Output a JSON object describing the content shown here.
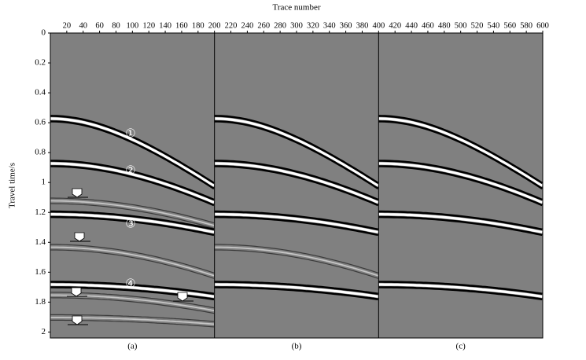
{
  "chart_data": {
    "type": "seismic-panels",
    "x_label": "Trace number",
    "y_label": "Travel time/s",
    "xlim": [
      0,
      600
    ],
    "xticks": [
      20,
      40,
      60,
      80,
      100,
      120,
      140,
      160,
      180,
      200,
      220,
      240,
      260,
      280,
      300,
      320,
      340,
      360,
      380,
      400,
      420,
      440,
      460,
      480,
      500,
      520,
      540,
      560,
      580,
      600
    ],
    "ylim": [
      0,
      2.04
    ],
    "yticks": [
      0,
      0.2,
      0.4,
      0.6,
      0.8,
      1,
      1.2,
      1.4,
      1.6,
      1.8,
      2
    ],
    "panels": [
      "(a)",
      "(b)",
      "(c)"
    ],
    "annotations": [
      "①",
      "②",
      "③",
      "④"
    ],
    "background": "#808080"
  }
}
